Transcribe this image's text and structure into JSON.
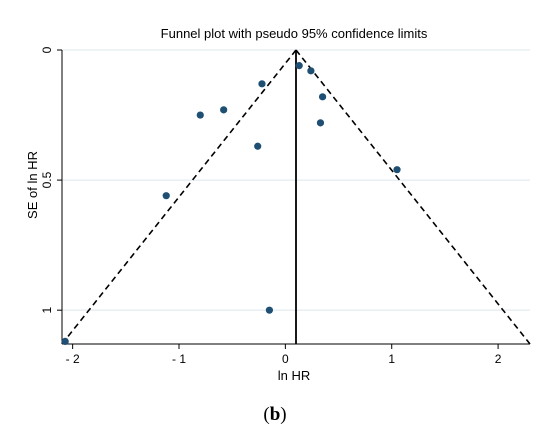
{
  "chart_data": {
    "type": "scatter",
    "title": "Funnel plot with pseudo 95% confidence limits",
    "xlabel": "ln HR",
    "ylabel": "SE of ln HR",
    "xlim": [
      -2.1,
      2.3
    ],
    "ylim": [
      0,
      1.13
    ],
    "y_reversed": true,
    "x_ticks": [
      -2,
      -1,
      0,
      1,
      2
    ],
    "x_tick_labels": [
      "- 2",
      "- 1",
      "0",
      "1",
      "2"
    ],
    "y_ticks": [
      0,
      0.5,
      1
    ],
    "y_tick_labels": [
      "0",
      "0.5",
      "1"
    ],
    "grid": "horizontal",
    "pooled_estimate": 0.1,
    "confidence_limits": [
      {
        "x": [
          0.1,
          -2.1
        ],
        "y": [
          0,
          1.13
        ]
      },
      {
        "x": [
          0.1,
          2.3
        ],
        "y": [
          0,
          1.13
        ]
      }
    ],
    "points": [
      {
        "x": -2.07,
        "y": 1.12
      },
      {
        "x": -1.12,
        "y": 0.56
      },
      {
        "x": -0.8,
        "y": 0.25
      },
      {
        "x": -0.58,
        "y": 0.23
      },
      {
        "x": -0.26,
        "y": 0.37
      },
      {
        "x": -0.22,
        "y": 0.13
      },
      {
        "x": -0.15,
        "y": 1.0
      },
      {
        "x": 0.13,
        "y": 0.06
      },
      {
        "x": 0.24,
        "y": 0.08
      },
      {
        "x": 0.33,
        "y": 0.28
      },
      {
        "x": 0.35,
        "y": 0.18
      },
      {
        "x": 1.05,
        "y": 0.46
      }
    ],
    "colors": {
      "points": "#1f4f73",
      "grid": "#dce8ee",
      "axis": "#000000"
    }
  },
  "caption": {
    "open": "(",
    "letter": "b",
    "close": ")"
  }
}
